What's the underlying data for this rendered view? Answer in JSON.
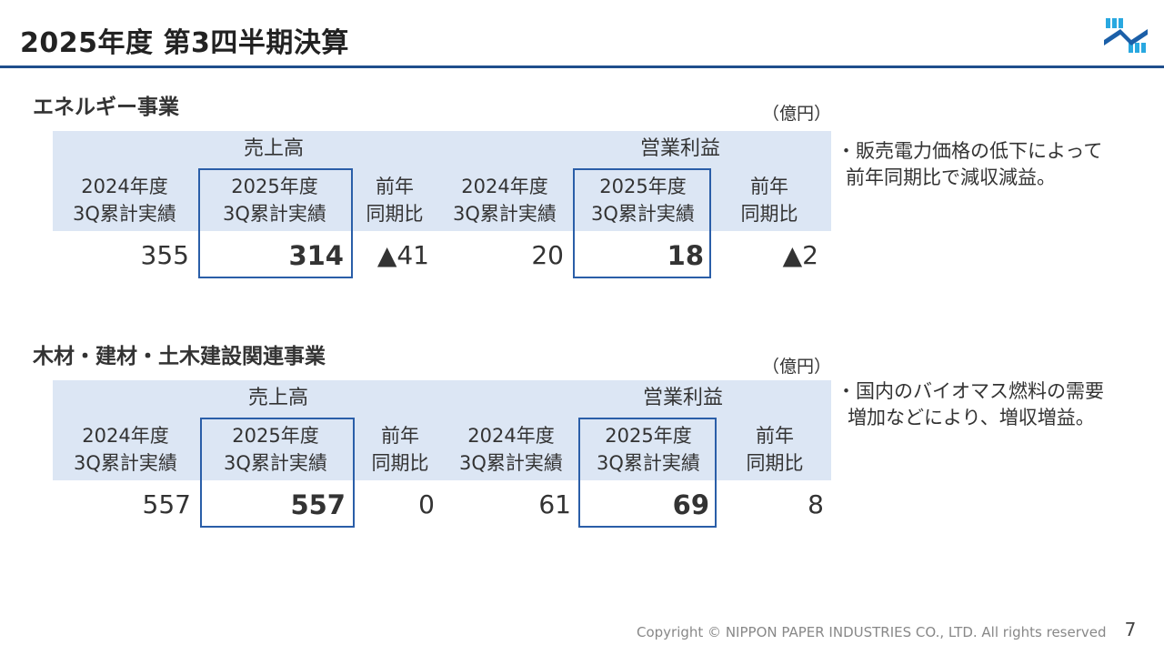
{
  "page": {
    "title": "2025年度 第3四半期決算",
    "footer": "Copyright © NIPPON PAPER INDUSTRIES CO., LTD. All rights reserved",
    "page_number": "7",
    "logo_icon": "nippon-paper-logo-icon",
    "accent_color": "#1f4e8c",
    "header_band_color": "#dce6f4",
    "highlight_border_color": "#2a5ea8"
  },
  "sections": [
    {
      "title": "エネルギー事業",
      "unit": "（億円）",
      "groups": [
        "売上高",
        "営業利益"
      ],
      "headers": [
        [
          "2024年度",
          "3Q累計実績"
        ],
        [
          "2025年度",
          "3Q累計実績"
        ],
        [
          "前年",
          "同期比"
        ],
        [
          "2024年度",
          "3Q累計実績"
        ],
        [
          "2025年度",
          "3Q累計実績"
        ],
        [
          "前年",
          "同期比"
        ]
      ],
      "values": [
        "355",
        "314",
        "▲41",
        "20",
        "18",
        "▲2"
      ],
      "note": [
        "・販売電力価格の低下によって",
        "前年同期比で減収減益。"
      ]
    },
    {
      "title": "木材・建材・土木建設関連事業",
      "unit": "（億円）",
      "groups": [
        "売上高",
        "営業利益"
      ],
      "headers": [
        [
          "2024年度",
          "3Q累計実績"
        ],
        [
          "2025年度",
          "3Q累計実績"
        ],
        [
          "前年",
          "同期比"
        ],
        [
          "2024年度",
          "3Q累計実績"
        ],
        [
          "2025年度",
          "3Q累計実績"
        ],
        [
          "前年",
          "同期比"
        ]
      ],
      "values": [
        "557",
        "557",
        "0",
        "61",
        "69",
        "8"
      ],
      "note": [
        "・国内のバイオマス燃料の需要",
        "増加などにより、増収増益。"
      ]
    }
  ]
}
